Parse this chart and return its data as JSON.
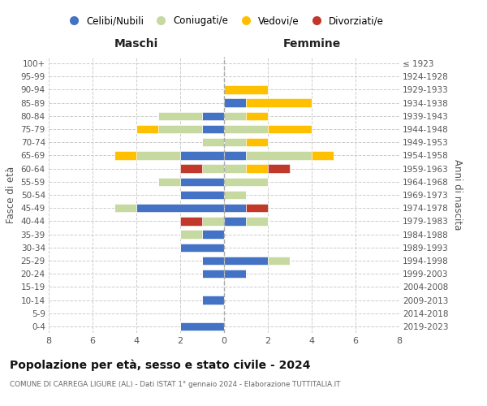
{
  "age_groups": [
    "0-4",
    "5-9",
    "10-14",
    "15-19",
    "20-24",
    "25-29",
    "30-34",
    "35-39",
    "40-44",
    "45-49",
    "50-54",
    "55-59",
    "60-64",
    "65-69",
    "70-74",
    "75-79",
    "80-84",
    "85-89",
    "90-94",
    "95-99",
    "100+"
  ],
  "birth_years": [
    "2019-2023",
    "2014-2018",
    "2009-2013",
    "2004-2008",
    "1999-2003",
    "1994-1998",
    "1989-1993",
    "1984-1988",
    "1979-1983",
    "1974-1978",
    "1969-1973",
    "1964-1968",
    "1959-1963",
    "1954-1958",
    "1949-1953",
    "1944-1948",
    "1939-1943",
    "1934-1938",
    "1929-1933",
    "1924-1928",
    "≤ 1923"
  ],
  "maschi": {
    "celibi": [
      2,
      0,
      1,
      0,
      1,
      1,
      2,
      1,
      0,
      4,
      2,
      2,
      0,
      2,
      0,
      1,
      1,
      0,
      0,
      0,
      0
    ],
    "coniugati": [
      0,
      0,
      0,
      0,
      0,
      0,
      0,
      1,
      1,
      1,
      0,
      1,
      1,
      2,
      1,
      2,
      2,
      0,
      0,
      0,
      0
    ],
    "vedovi": [
      0,
      0,
      0,
      0,
      0,
      0,
      0,
      0,
      0,
      0,
      0,
      0,
      0,
      1,
      0,
      1,
      0,
      0,
      0,
      0,
      0
    ],
    "divorziati": [
      0,
      0,
      0,
      0,
      0,
      0,
      0,
      0,
      1,
      0,
      0,
      0,
      1,
      0,
      0,
      0,
      0,
      0,
      0,
      0,
      0
    ]
  },
  "femmine": {
    "celibi": [
      0,
      0,
      0,
      0,
      1,
      2,
      0,
      0,
      1,
      1,
      0,
      0,
      0,
      1,
      0,
      0,
      0,
      1,
      0,
      0,
      0
    ],
    "coniugati": [
      0,
      0,
      0,
      0,
      0,
      1,
      0,
      0,
      1,
      0,
      1,
      2,
      1,
      3,
      1,
      2,
      1,
      0,
      0,
      0,
      0
    ],
    "vedovi": [
      0,
      0,
      0,
      0,
      0,
      0,
      0,
      0,
      0,
      0,
      0,
      0,
      1,
      1,
      1,
      2,
      1,
      3,
      2,
      0,
      0
    ],
    "divorziati": [
      0,
      0,
      0,
      0,
      0,
      0,
      0,
      0,
      0,
      1,
      0,
      0,
      1,
      0,
      0,
      0,
      0,
      0,
      0,
      0,
      0
    ]
  },
  "colors": {
    "celibi": "#4472c4",
    "coniugati": "#c6d9a0",
    "vedovi": "#ffc000",
    "divorziati": "#c0392b"
  },
  "legend_labels": [
    "Celibi/Nubili",
    "Coniugati/e",
    "Vedovi/e",
    "Divorziati/e"
  ],
  "title": "Popolazione per età, sesso e stato civile - 2024",
  "subtitle": "COMUNE DI CARREGA LIGURE (AL) - Dati ISTAT 1° gennaio 2024 - Elaborazione TUTTITALIA.IT",
  "label_maschi": "Maschi",
  "label_femmine": "Femmine",
  "ylabel_left": "Fasce di età",
  "ylabel_right": "Anni di nascita",
  "xlim": 8,
  "background_color": "#ffffff",
  "grid_color": "#cccccc"
}
